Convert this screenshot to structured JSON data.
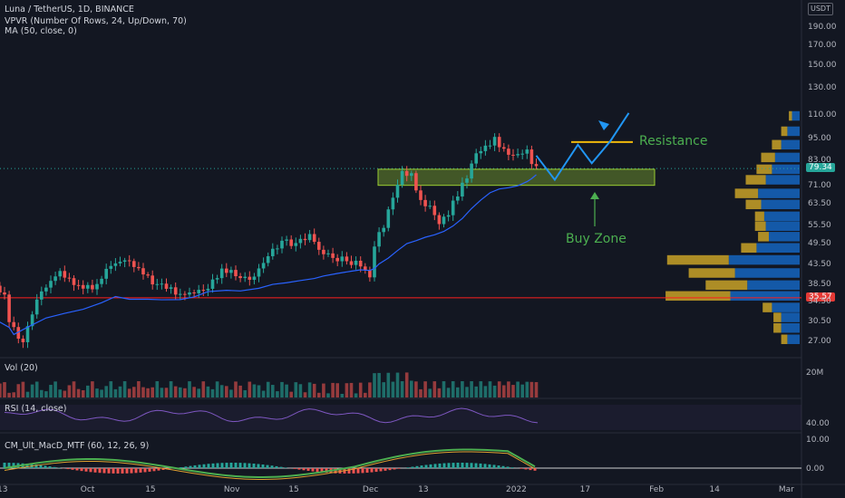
{
  "header": {
    "symbol_line": "Luna / TetherUS, 1D, BINANCE",
    "indicator_vpvr": "VPVR (Number Of Rows, 24, Up/Down, 70)",
    "indicator_ma": "MA (50, close, 0)",
    "currency": "USDT"
  },
  "panes": {
    "volume_label": "Vol (20)",
    "volume_tick": "20M",
    "rsi_label": "RSI (14, close)",
    "rsi_tick": "40.00",
    "macd_label": "CM_Ult_MacD_MTF (60, 12, 26, 9)",
    "macd_ticks": [
      "10.00",
      "0.00"
    ]
  },
  "price_tags": {
    "current": "79.34",
    "horizontal_line": "35.57"
  },
  "annotations": {
    "resistance": "Resistance",
    "buy_zone": "Buy Zone"
  },
  "colors": {
    "background": "#131722",
    "up": "#26a69a",
    "down": "#ef5350",
    "ma": "#2962ff",
    "support_line": "#ff1f1f",
    "zone": "#9acd32",
    "resistance_line": "#f0b90b",
    "annotation_text": "#4caf50",
    "projection": "#2196f3",
    "vp_up": "#1565c0",
    "vp_down": "#c9a227"
  },
  "chart_data": {
    "type": "candlestick",
    "y_axis_scale": "log",
    "y_ticks": [
      "190.00",
      "170.00",
      "150.00",
      "130.00",
      "110.00",
      "95.00",
      "83.00",
      "71.00",
      "63.50",
      "55.50",
      "49.50",
      "43.50",
      "38.50",
      "34.50",
      "30.50",
      "27.00"
    ],
    "x_ticks": [
      "13",
      "Oct",
      "15",
      "Nov",
      "15",
      "Dec",
      "13",
      "2022",
      "17",
      "Feb",
      "14",
      "Mar"
    ],
    "x_tick_dates": [
      "2021-09-13",
      "2021-10-01",
      "2021-10-15",
      "2021-11-01",
      "2021-11-15",
      "2021-12-01",
      "2021-12-13",
      "2022-01-01",
      "2022-01-17",
      "2022-02-01",
      "2022-02-14",
      "2022-03-01"
    ],
    "last_price": 79.34,
    "support_line_price": 35.57,
    "buy_zone_price_range": [
      71.5,
      79.0
    ],
    "resistance_level": 93.5,
    "candle_closes_approx": [
      [
        "2021-09-07",
        38.5
      ],
      [
        "2021-09-11",
        36.0
      ],
      [
        "2021-09-14",
        30.0
      ],
      [
        "2021-09-15",
        26.5
      ],
      [
        "2021-09-18",
        37.5
      ],
      [
        "2021-09-22",
        42.0
      ],
      [
        "2021-09-26",
        38.0
      ],
      [
        "2021-09-30",
        38.0
      ],
      [
        "2021-10-04",
        44.0
      ],
      [
        "2021-10-07",
        45.0
      ],
      [
        "2021-10-10",
        41.5
      ],
      [
        "2021-10-14",
        38.0
      ],
      [
        "2021-10-17",
        37.0
      ],
      [
        "2021-10-21",
        36.5
      ],
      [
        "2021-10-24",
        37.5
      ],
      [
        "2021-10-27",
        42.0
      ],
      [
        "2021-10-31",
        41.5
      ],
      [
        "2021-11-03",
        40.0
      ],
      [
        "2021-11-07",
        46.0
      ],
      [
        "2021-11-10",
        50.0
      ],
      [
        "2021-11-13",
        49.0
      ],
      [
        "2021-11-16",
        52.0
      ],
      [
        "2021-11-19",
        48.0
      ],
      [
        "2021-11-21",
        46.0
      ],
      [
        "2021-11-24",
        45.5
      ],
      [
        "2021-11-27",
        44.0
      ],
      [
        "2021-11-29",
        42.0
      ],
      [
        "2021-12-01",
        40.0
      ],
      [
        "2021-12-02",
        48.0
      ],
      [
        "2021-12-03",
        56.0
      ],
      [
        "2021-12-05",
        67.0
      ],
      [
        "2021-12-07",
        78.0
      ],
      [
        "2021-12-09",
        76.0
      ],
      [
        "2021-12-11",
        64.0
      ],
      [
        "2021-12-13",
        62.0
      ],
      [
        "2021-12-15",
        56.0
      ],
      [
        "2021-12-17",
        60.0
      ],
      [
        "2021-12-19",
        68.0
      ],
      [
        "2021-12-21",
        76.0
      ],
      [
        "2021-12-23",
        88.0
      ],
      [
        "2021-12-25",
        91.0
      ],
      [
        "2021-12-27",
        95.0
      ],
      [
        "2021-12-29",
        88.0
      ],
      [
        "2021-12-31",
        85.0
      ],
      [
        "2022-01-02",
        87.0
      ],
      [
        "2022-01-04",
        88.0
      ],
      [
        "2022-01-05",
        80.0
      ],
      [
        "2022-01-06",
        79.34
      ]
    ],
    "ma_series": "MA (50, close, 0)"
  }
}
